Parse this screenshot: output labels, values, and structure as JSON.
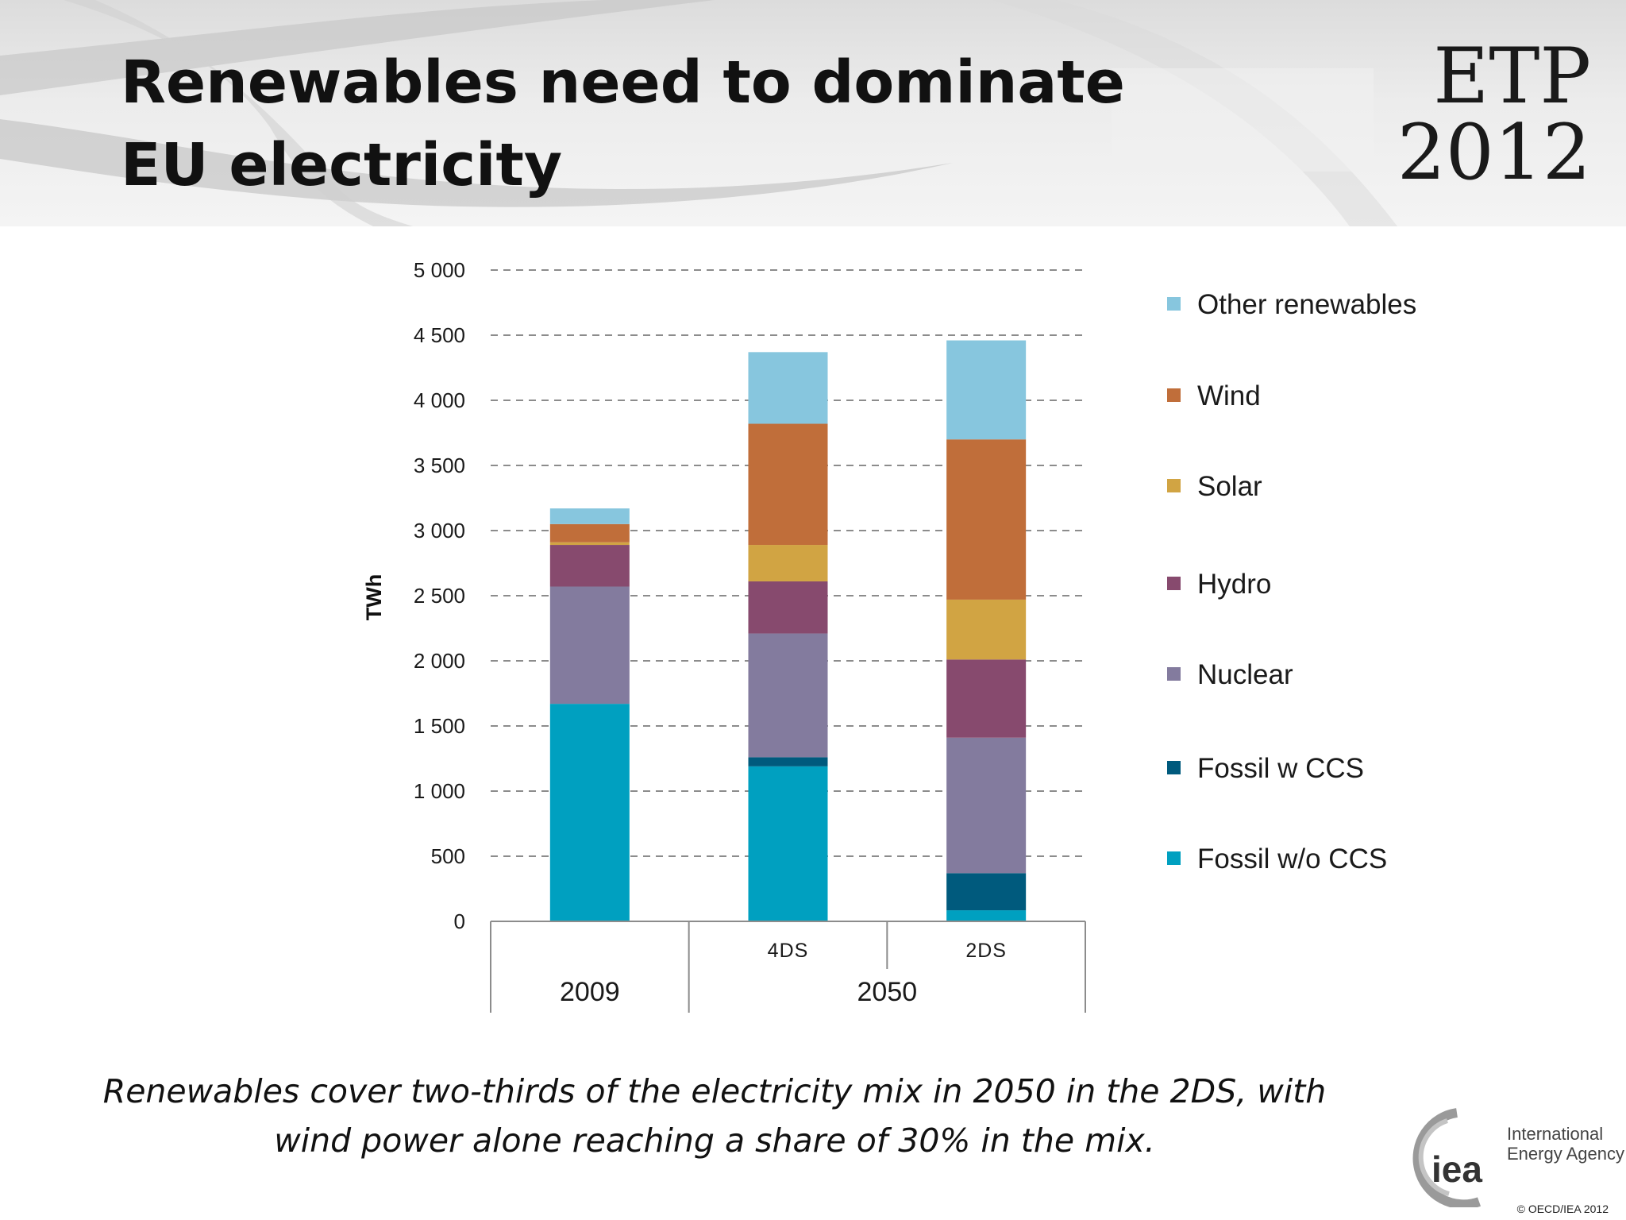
{
  "slide": {
    "title": "Renewables need to dominate EU electricity",
    "brand_line1": "ETP",
    "brand_line2": "2012",
    "caption_line1": "Renewables cover two-thirds of the electricity mix in 2050 in the 2DS, with",
    "caption_line2": "wind power alone reaching a share of 30% in the mix.",
    "org_name_line1": "International",
    "org_name_line2": "Energy Agency",
    "org_logo_text": "iea",
    "copyright": "© OECD/IEA 2012"
  },
  "chart_data": {
    "type": "bar",
    "stacked": true,
    "ylabel": "TWh",
    "xlabel": "",
    "ylim": [
      0,
      5000
    ],
    "yticks": [
      0,
      500,
      1000,
      1500,
      2000,
      2500,
      3000,
      3500,
      4000,
      4500,
      5000
    ],
    "ytick_labels": [
      "0",
      "500",
      "1 000",
      "1 500",
      "2 000",
      "2 500",
      "3 000",
      "3 500",
      "4 000",
      "4 500",
      "5 000"
    ],
    "grid": "horizontal dashed",
    "legend_position": "right",
    "categories": [
      "2009",
      "4DS",
      "2DS"
    ],
    "category_groups": [
      {
        "label": "2009",
        "categories": [
          "2009"
        ]
      },
      {
        "label": "2050",
        "categories": [
          "4DS",
          "2DS"
        ]
      }
    ],
    "category_labels": [
      "",
      "4DS",
      "2DS"
    ],
    "series": [
      {
        "name": "Fossil w/o CCS",
        "color": "#00A0C0",
        "values": [
          1670,
          1190,
          85
        ]
      },
      {
        "name": "Fossil w CCS",
        "color": "#005A7D",
        "values": [
          0,
          70,
          285
        ]
      },
      {
        "name": "Nuclear",
        "color": "#837B9E",
        "values": [
          900,
          950,
          1040
        ]
      },
      {
        "name": "Hydro",
        "color": "#874A6E",
        "values": [
          320,
          400,
          600
        ]
      },
      {
        "name": "Solar",
        "color": "#D1A443",
        "values": [
          20,
          280,
          460
        ]
      },
      {
        "name": "Wind",
        "color": "#C06E3A",
        "values": [
          140,
          930,
          1230
        ]
      },
      {
        "name": "Other renewables",
        "color": "#87C6DE",
        "values": [
          120,
          550,
          760
        ]
      }
    ]
  }
}
